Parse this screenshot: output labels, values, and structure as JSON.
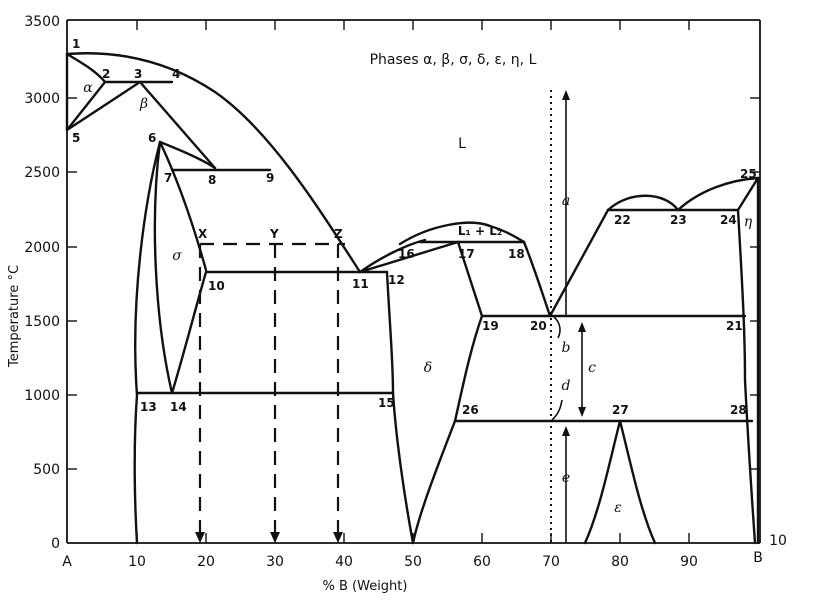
{
  "title": "Phases α, β, σ, δ, ε, η, L",
  "xlabel": "% B (Weight)",
  "ylabel": "Temperature °C",
  "y_ticks": [
    "0",
    "500",
    "1000",
    "1500",
    "2000",
    "2500",
    "3000",
    "3500"
  ],
  "x_ticks": [
    "10",
    "20",
    "30",
    "40",
    "50",
    "60",
    "70",
    "80",
    "90"
  ],
  "x_end_labels": {
    "left": "A",
    "right": "B"
  },
  "right_margin_label": "10",
  "region_labels": {
    "L": "L",
    "alpha": "α",
    "beta": "β",
    "sigma": "σ",
    "delta": "δ",
    "epsilon": "ε",
    "eta": "η",
    "l1l2": "L₁ + L₂"
  },
  "point_labels": [
    "1",
    "2",
    "3",
    "4",
    "5",
    "6",
    "7",
    "8",
    "9",
    "X",
    "Y",
    "Z",
    "10",
    "11",
    "12",
    "13",
    "14",
    "15",
    "16",
    "17",
    "18",
    "19",
    "20",
    "21",
    "22",
    "23",
    "24",
    "25",
    "26",
    "27",
    "28"
  ],
  "arrow_labels": {
    "a": "a",
    "b": "b",
    "c": "c",
    "d": "d",
    "e": "e"
  },
  "chart_data": {
    "type": "phase-diagram",
    "xlim": [
      0,
      100
    ],
    "ylim": [
      0,
      3500
    ],
    "tie_lines_temperature": {
      "alpha_eutectic": 3100,
      "peritectic_upper": 2520,
      "dashed_xyz": 2040,
      "sigma_peritectic": 1820,
      "monotectic": 2040,
      "eutectic_1540": 1540,
      "eutectoid_1020": 1020,
      "lower_820": 820,
      "eta_line": 2260
    },
    "invariant_points": [
      {
        "label": "1",
        "x": 0,
        "y": 3300
      },
      {
        "label": "2",
        "x": 5,
        "y": 3100
      },
      {
        "label": "3",
        "x": 10,
        "y": 3100
      },
      {
        "label": "4",
        "x": 15,
        "y": 3100
      },
      {
        "label": "5",
        "x": 0,
        "y": 2800
      },
      {
        "label": "6",
        "x": 13,
        "y": 2700
      },
      {
        "label": "7",
        "x": 15,
        "y": 2520
      },
      {
        "label": "8",
        "x": 20,
        "y": 2520
      },
      {
        "label": "9",
        "x": 29,
        "y": 2520
      },
      {
        "label": "X",
        "x": 19,
        "y": 2040
      },
      {
        "label": "Y",
        "x": 30,
        "y": 2040
      },
      {
        "label": "Z",
        "x": 39,
        "y": 2040
      },
      {
        "label": "10",
        "x": 20,
        "y": 1820
      },
      {
        "label": "11",
        "x": 42,
        "y": 1820
      },
      {
        "label": "12",
        "x": 46,
        "y": 1820
      },
      {
        "label": "13",
        "x": 10,
        "y": 1020
      },
      {
        "label": "14",
        "x": 15,
        "y": 1020
      },
      {
        "label": "15",
        "x": 46,
        "y": 1020
      },
      {
        "label": "16",
        "x": 48,
        "y": 1960
      },
      {
        "label": "17",
        "x": 56,
        "y": 2040
      },
      {
        "label": "18",
        "x": 65,
        "y": 2040
      },
      {
        "label": "19",
        "x": 60,
        "y": 1540
      },
      {
        "label": "20",
        "x": 69,
        "y": 1540
      },
      {
        "label": "21",
        "x": 95,
        "y": 1540
      },
      {
        "label": "22",
        "x": 78,
        "y": 2260
      },
      {
        "label": "23",
        "x": 88,
        "y": 2260
      },
      {
        "label": "24",
        "x": 97,
        "y": 2260
      },
      {
        "label": "25",
        "x": 100,
        "y": 2500
      },
      {
        "label": "26",
        "x": 55,
        "y": 820
      },
      {
        "label": "27",
        "x": 80,
        "y": 820
      },
      {
        "label": "28",
        "x": 98,
        "y": 820
      }
    ]
  }
}
